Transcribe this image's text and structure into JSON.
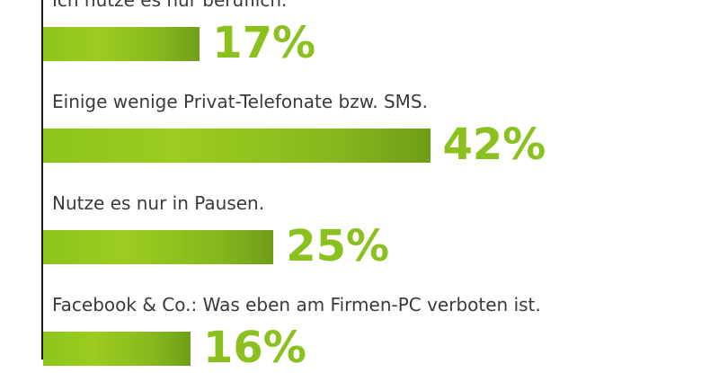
{
  "chart_data": {
    "type": "bar",
    "orientation": "horizontal",
    "categories": [
      "Ich nutze es nur beruflich.",
      "Einige wenige Privat-Telefonate bzw. SMS.",
      "Nutze es nur in Pausen.",
      "Facebook & Co.: Was eben am Firmen-PC verboten ist."
    ],
    "values": [
      17,
      42,
      25,
      16
    ],
    "value_labels": [
      "17%",
      "42%",
      "25%",
      "16%"
    ],
    "unit": "%",
    "bar_color": "#8dc51c",
    "value_label_color": "#8ac11f",
    "axis_color": "#1a1a1a",
    "grid": false,
    "legend": "none"
  }
}
